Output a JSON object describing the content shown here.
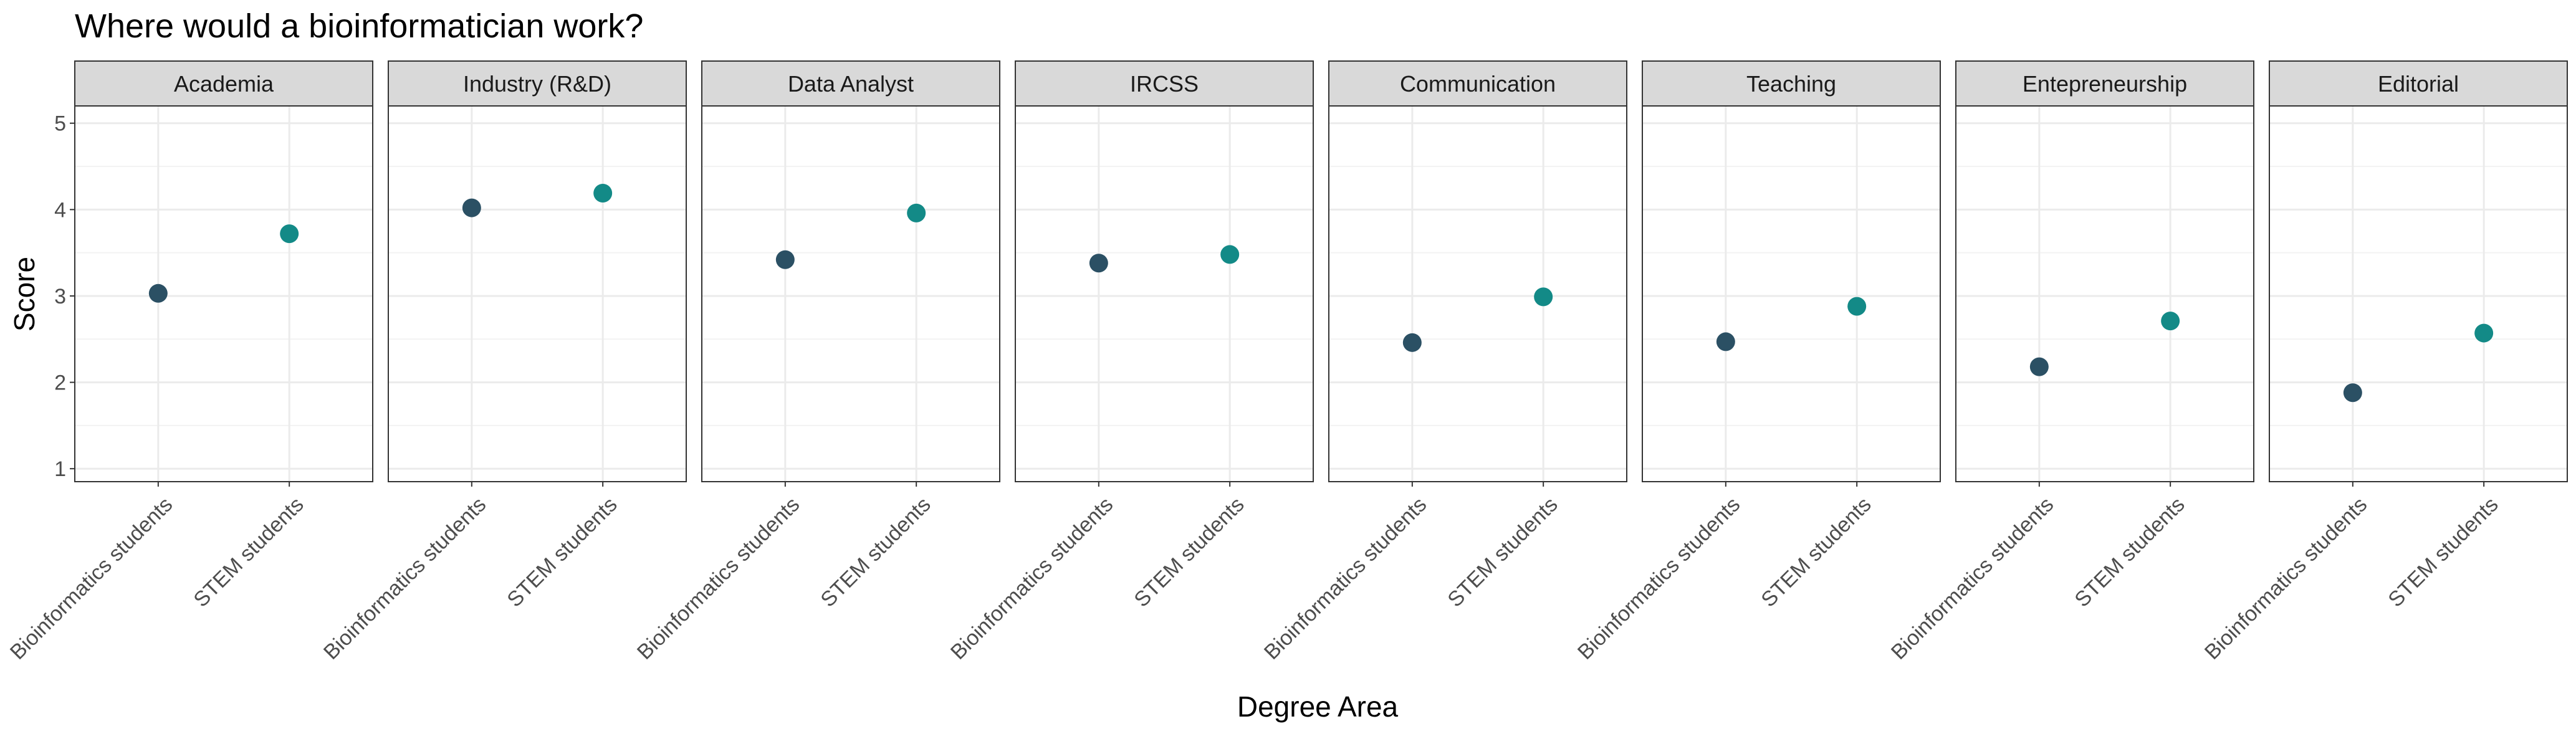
{
  "chart_data": {
    "type": "scatter",
    "title": "Where would a bioinformatician work?",
    "xlabel": "Degree Area",
    "ylabel": "Score",
    "ylim": [
      0.85,
      5.2
    ],
    "yticks": [
      1,
      2,
      3,
      4,
      5
    ],
    "grid": true,
    "categories": [
      "Bioinformatics students",
      "STEM students"
    ],
    "category_colors": [
      "#2b5064",
      "#138a87"
    ],
    "facets": [
      {
        "label": "Academia",
        "values": [
          3.03,
          3.72
        ]
      },
      {
        "label": "Industry (R&D)",
        "values": [
          4.02,
          4.19
        ]
      },
      {
        "label": "Data Analyst",
        "values": [
          3.42,
          3.96
        ]
      },
      {
        "label": "IRCSS",
        "values": [
          3.38,
          3.48
        ]
      },
      {
        "label": "Communication",
        "values": [
          2.46,
          2.99
        ]
      },
      {
        "label": "Teaching",
        "values": [
          2.47,
          2.88
        ]
      },
      {
        "label": "Entepreneurship",
        "values": [
          2.18,
          2.71
        ]
      },
      {
        "label": "Editorial",
        "values": [
          1.88,
          2.57
        ]
      }
    ],
    "panel_background": "#ffffff",
    "strip_background": "#d9d9d9",
    "grid_color": "#ebebeb"
  }
}
